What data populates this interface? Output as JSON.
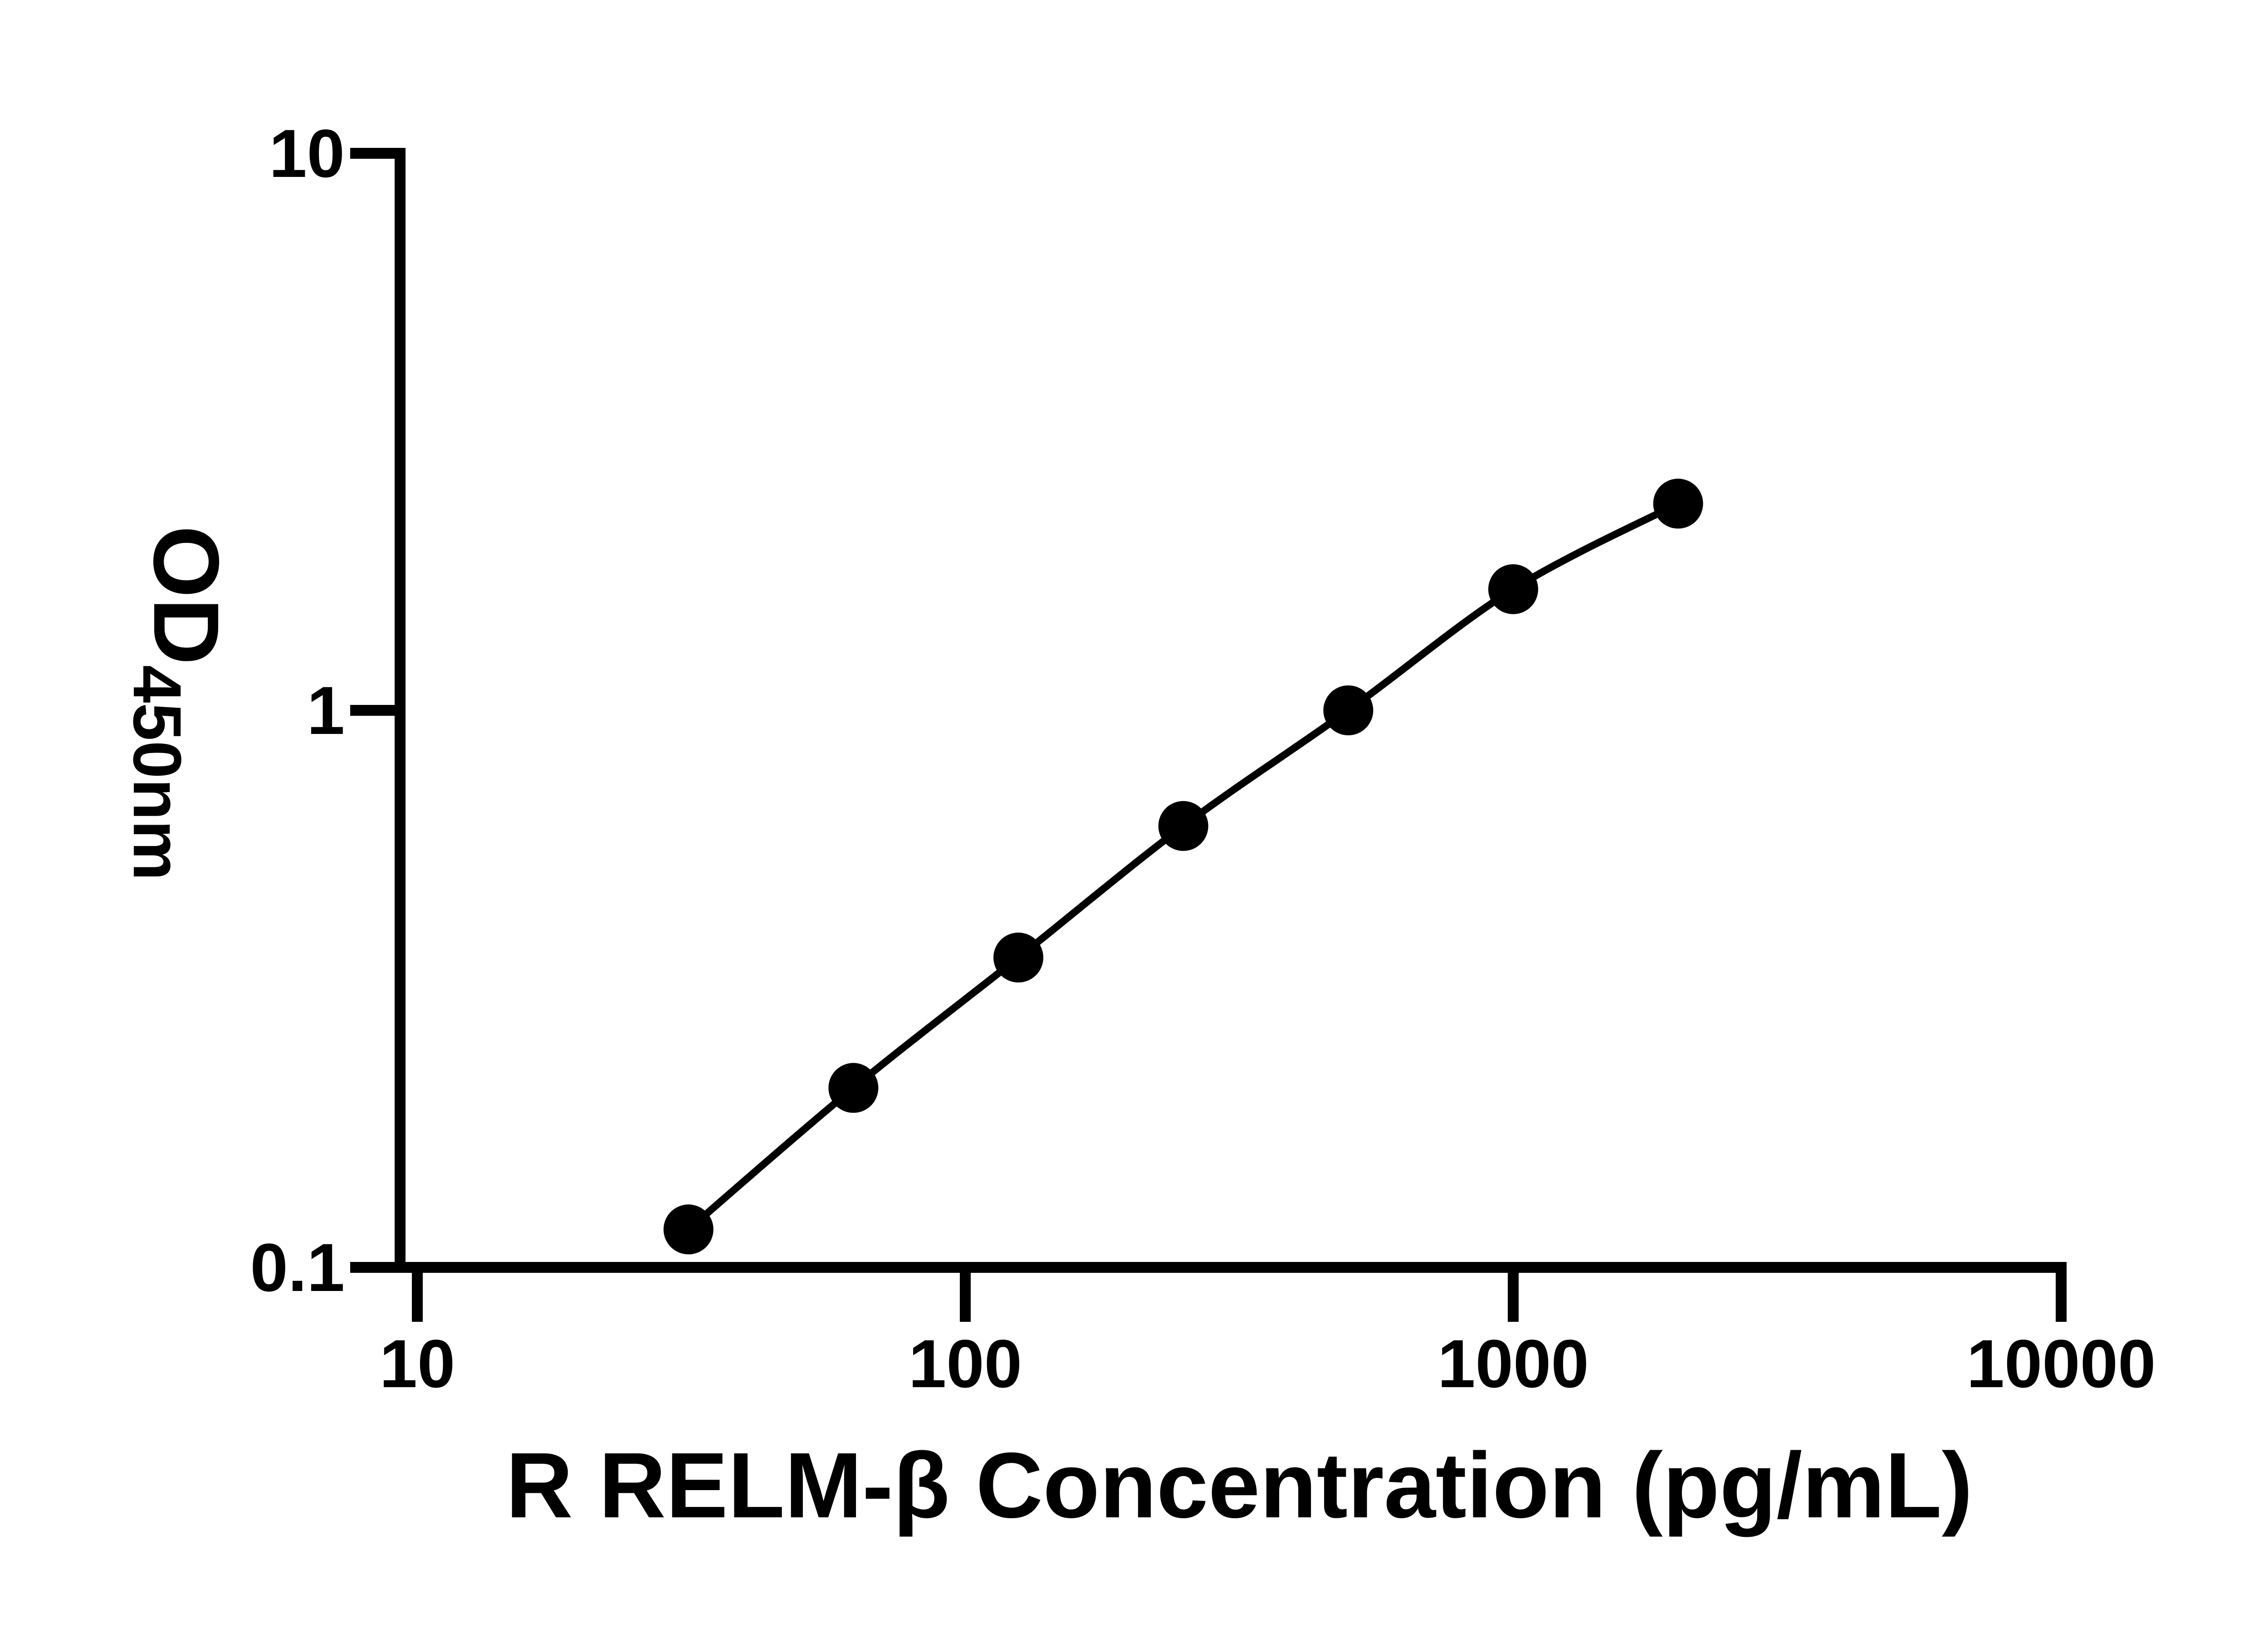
{
  "chart_data": {
    "type": "line",
    "markers": true,
    "x": [
      31.25,
      62.5,
      125,
      250,
      500,
      1000,
      2000
    ],
    "y": [
      0.117,
      0.21,
      0.36,
      0.62,
      1.0,
      1.65,
      2.35
    ],
    "xlabel": "R RELM-β Concentration (pg/mL)",
    "ylabel_main": "OD",
    "ylabel_sub": "450nm",
    "xscale": "log",
    "yscale": "log",
    "xlim": [
      10,
      10000
    ],
    "ylim": [
      0.1,
      10
    ],
    "x_ticks": [
      {
        "value": 10,
        "label": "10"
      },
      {
        "value": 100,
        "label": "100"
      },
      {
        "value": 1000,
        "label": "1000"
      },
      {
        "value": 10000,
        "label": "10000"
      }
    ],
    "y_ticks": [
      {
        "value": 0.1,
        "label": "0.1"
      },
      {
        "value": 1,
        "label": "1"
      },
      {
        "value": 10,
        "label": "10"
      }
    ],
    "grid": false,
    "legend": null,
    "line_color": "#000000",
    "marker_color": "#000000",
    "background": "#ffffff"
  }
}
